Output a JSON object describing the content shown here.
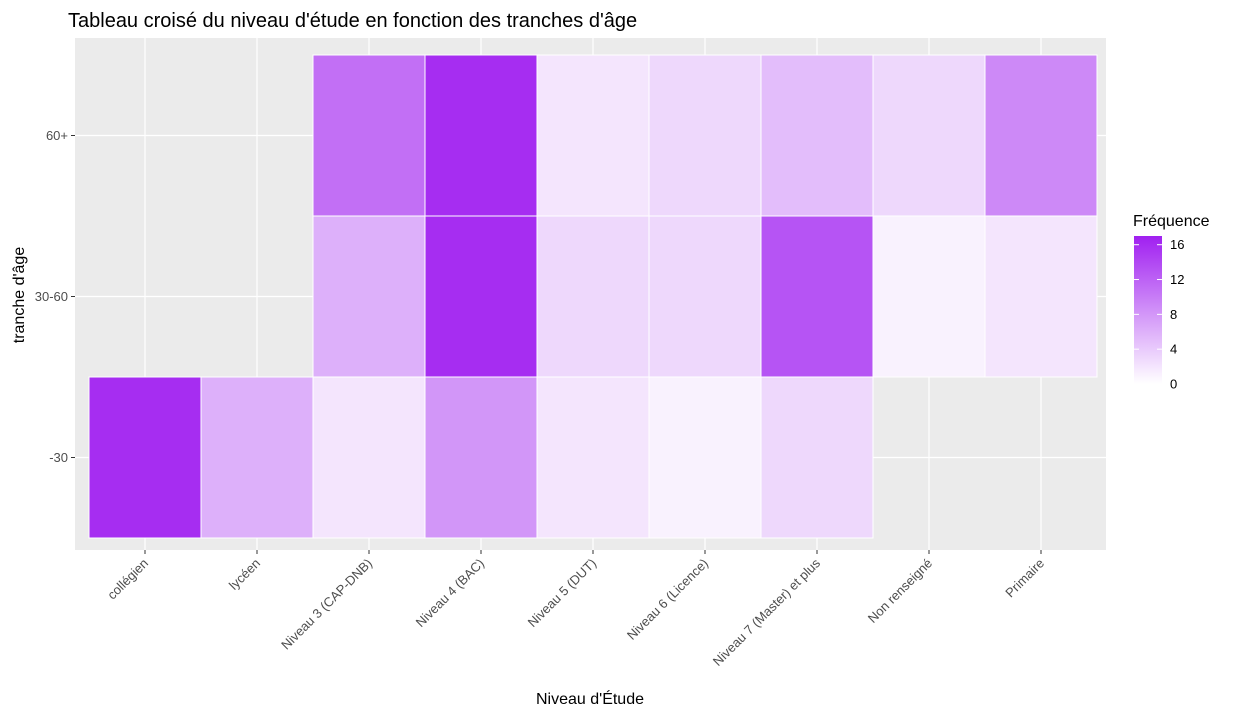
{
  "chart_data": {
    "type": "heatmap",
    "title": "Tableau croisé du niveau d'étude en fonction des tranches d'âge",
    "xlabel": "Niveau d'Étude",
    "ylabel": "tranche d'âge",
    "x_categories": [
      "collégien",
      "lycéen",
      "Niveau 3 (CAP-DNB)",
      "Niveau 4 (BAC)",
      "Niveau 5 (DUT)",
      "Niveau 6 (Licence)",
      "Niveau 7 (Master) et plus",
      "Non renseigné",
      "Primaire"
    ],
    "y_categories": [
      "-30",
      "30-60",
      "60+"
    ],
    "values": [
      [
        16,
        6,
        2,
        8,
        2,
        1,
        3,
        null,
        null
      ],
      [
        null,
        null,
        6,
        16,
        3,
        3,
        13,
        1,
        2
      ],
      [
        null,
        null,
        11,
        16,
        2,
        3,
        5,
        3,
        9
      ]
    ],
    "legend": {
      "title": "Fréquence",
      "ticks": [
        0,
        4,
        8,
        12,
        16
      ],
      "range": [
        0,
        17
      ],
      "position": "right"
    },
    "colors": {
      "low": "#ffffff",
      "high": "#a020f0",
      "panel": "#ebebeb",
      "grid": "#ffffff",
      "tile_border": "#ffffff"
    },
    "grid": true
  }
}
